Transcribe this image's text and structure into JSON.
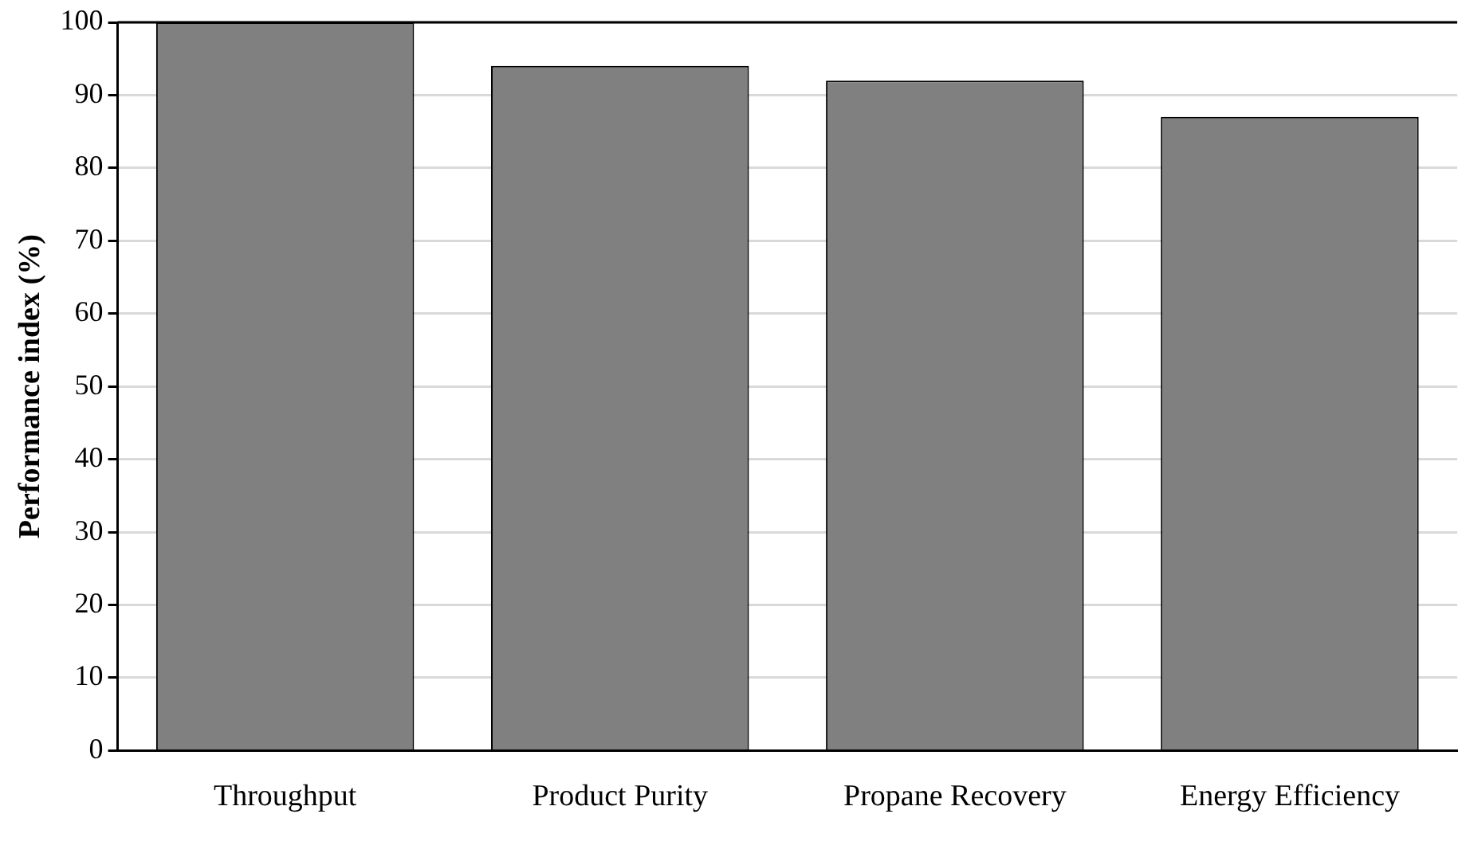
{
  "chart_data": {
    "type": "bar",
    "ylabel": "Performance index (%)",
    "categories": [
      "Throughput",
      "Product Purity",
      "Propane Recovery",
      "Energy Efficiency"
    ],
    "values": [
      100,
      94,
      92,
      87
    ],
    "color": "#808080",
    "ylim": [
      0,
      100
    ],
    "yticks": [
      0,
      10,
      20,
      30,
      40,
      50,
      60,
      70,
      80,
      90,
      100
    ],
    "grid": "y"
  }
}
